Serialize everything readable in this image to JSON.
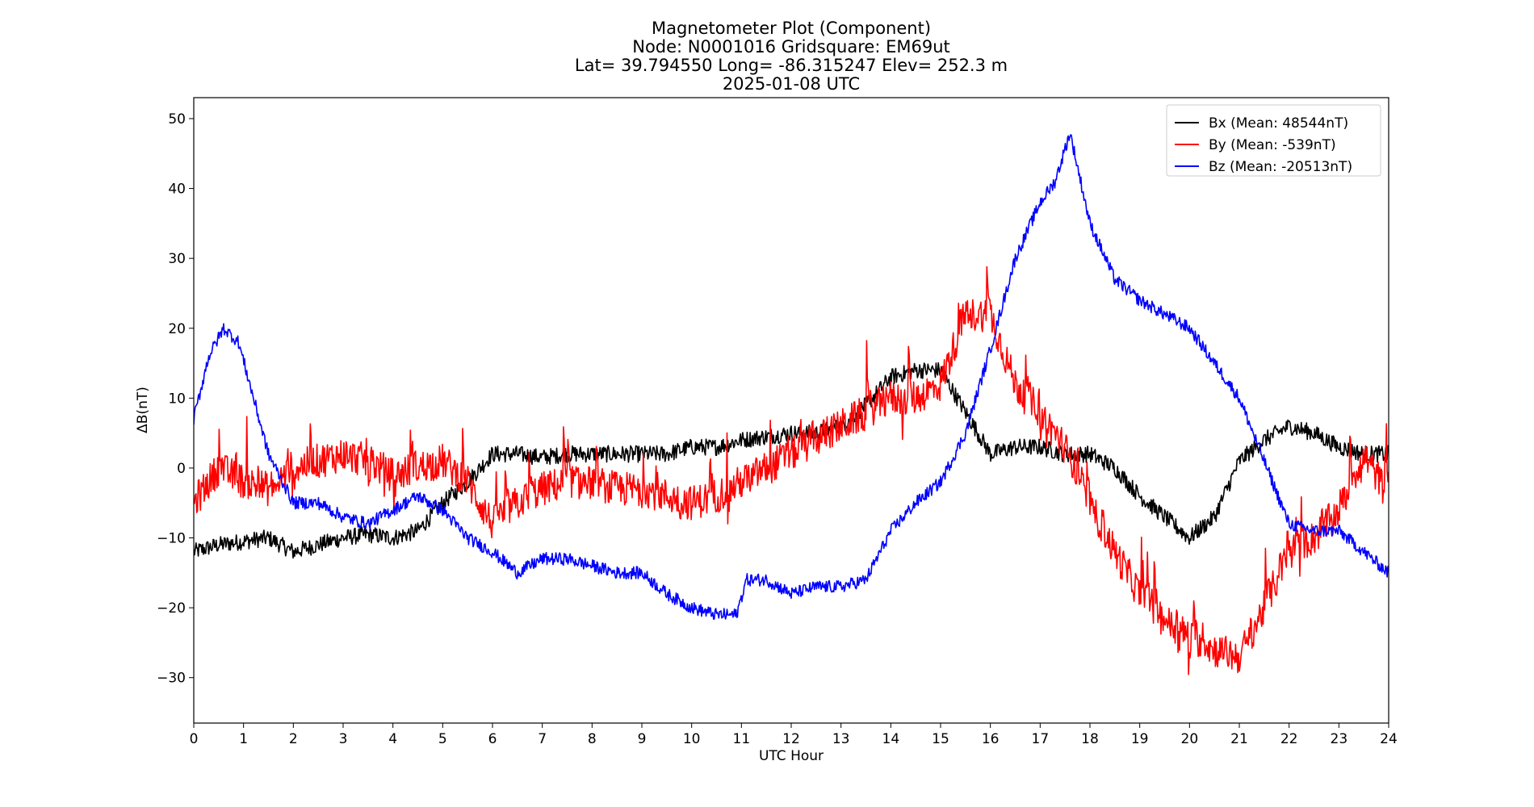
{
  "chart_data": {
    "type": "line",
    "title_lines": [
      "Magnetometer Plot (Component)",
      "Node:  N0001016     Gridsquare:  EM69ut",
      "Lat= 39.794550    Long= -86.315247    Elev= 252.3 m",
      "2025-01-08  UTC"
    ],
    "xlabel": "UTC Hour",
    "ylabel": "ΔB(nT)",
    "xlim": [
      0,
      24
    ],
    "ylim": [
      -36.5,
      53
    ],
    "xticks": [
      0,
      1,
      2,
      3,
      4,
      5,
      6,
      7,
      8,
      9,
      10,
      11,
      12,
      13,
      14,
      15,
      16,
      17,
      18,
      19,
      20,
      21,
      22,
      23,
      24
    ],
    "yticks": [
      -30,
      -20,
      -10,
      0,
      10,
      20,
      30,
      40,
      50
    ],
    "ytick_labels": [
      "−30",
      "−20",
      "−10",
      "0",
      "10",
      "20",
      "30",
      "40",
      "50"
    ],
    "grid": false,
    "legend_position": "top-right",
    "series": [
      {
        "name": "Bx (Mean: 48544nT)",
        "color": "#000000",
        "noise": 1.2,
        "x": [
          0,
          0.5,
          1,
          1.5,
          2,
          2.5,
          3,
          3.5,
          4,
          4.5,
          5,
          5.5,
          6,
          6.5,
          7,
          7.5,
          8,
          8.5,
          9,
          9.5,
          10,
          10.5,
          11,
          11.5,
          12,
          12.5,
          13,
          13.5,
          14,
          14.5,
          15,
          15.5,
          16,
          16.5,
          17,
          17.5,
          18,
          18.5,
          19,
          19.5,
          20,
          20.5,
          21,
          21.5,
          22,
          22.5,
          23,
          23.5,
          24
        ],
        "y": [
          -12,
          -11,
          -10.5,
          -10,
          -12,
          -11,
          -10,
          -9.5,
          -10,
          -9,
          -5,
          -2,
          2,
          2,
          1.5,
          2,
          2,
          2,
          2,
          2,
          3,
          3,
          4,
          4.5,
          5,
          5,
          6,
          9,
          13,
          14,
          14,
          8,
          2,
          3,
          3,
          2,
          2,
          0,
          -4,
          -7,
          -10,
          -7,
          1,
          4,
          6,
          5,
          3,
          2,
          2
        ]
      },
      {
        "name": "By (Mean: -539nT)",
        "color": "#ff0000",
        "noise": 2.5,
        "spikes": 11,
        "x": [
          0,
          0.5,
          1,
          1.5,
          2,
          2.5,
          3,
          3.5,
          4,
          4.5,
          5,
          5.5,
          6,
          6.5,
          7,
          7.5,
          8,
          8.5,
          9,
          9.5,
          10,
          10.5,
          11,
          11.5,
          12,
          12.5,
          13,
          13.5,
          14,
          14.5,
          15,
          15.5,
          16,
          16.5,
          17,
          17.5,
          18,
          18.5,
          19,
          19.5,
          20,
          20.5,
          21,
          21.5,
          22,
          22.5,
          23,
          23.5,
          24
        ],
        "y": [
          -5,
          0,
          -2,
          -3,
          0,
          1,
          2,
          1,
          -1,
          0,
          1,
          -2,
          -8,
          -5,
          -3,
          -2,
          -2,
          -3,
          -3,
          -4,
          -5,
          -4,
          -2,
          0,
          2,
          4,
          6,
          8,
          10,
          10,
          12,
          22,
          22,
          12,
          8,
          3,
          -5,
          -12,
          -18,
          -22,
          -24,
          -26,
          -27,
          -20,
          -12,
          -10,
          -6,
          2,
          -4
        ]
      },
      {
        "name": "Bz (Mean: -20513nT)",
        "color": "#0000ff",
        "noise": 0.9,
        "x": [
          0,
          0.3,
          0.6,
          0.9,
          1.2,
          1.5,
          2,
          2.5,
          3,
          3.5,
          4,
          4.5,
          5,
          5.5,
          6,
          6.5,
          7,
          7.5,
          8,
          8.5,
          9,
          9.5,
          10,
          10.5,
          10.9,
          11.1,
          11.5,
          12,
          12.5,
          13,
          13.5,
          14,
          14.5,
          15,
          15.5,
          16,
          16.5,
          17,
          17.3,
          17.6,
          18,
          18.5,
          19,
          19.5,
          20,
          20.5,
          21,
          21.5,
          22,
          22.5,
          23,
          23.5,
          24
        ],
        "y": [
          7,
          16,
          20,
          18,
          10,
          2,
          -5,
          -5,
          -7,
          -8,
          -6,
          -4,
          -6,
          -10,
          -12,
          -15,
          -13,
          -13,
          -14,
          -15,
          -15,
          -18,
          -20,
          -21,
          -21,
          -16,
          -16,
          -18,
          -17,
          -17,
          -16,
          -9,
          -5,
          -2,
          5,
          17,
          30,
          38,
          41,
          48,
          35,
          27,
          24,
          22,
          20,
          15,
          10,
          1,
          -8,
          -9,
          -9,
          -12,
          -15
        ]
      }
    ]
  }
}
